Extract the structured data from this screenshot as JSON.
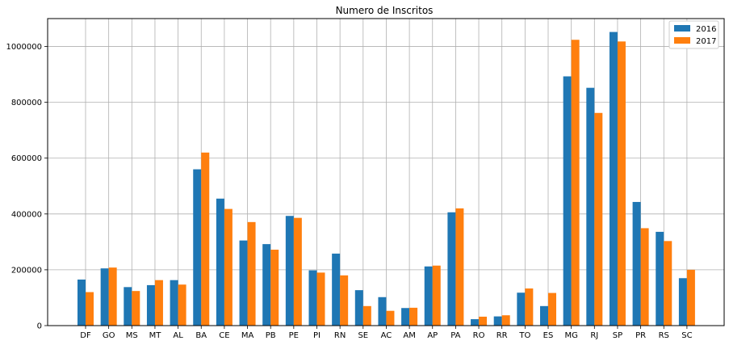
{
  "chart_data": {
    "type": "bar",
    "title": "Numero de Inscritos",
    "xlabel": "",
    "ylabel": "",
    "categories": [
      "DF",
      "GO",
      "MS",
      "MT",
      "AL",
      "BA",
      "CE",
      "MA",
      "PB",
      "PE",
      "PI",
      "RN",
      "SE",
      "AC",
      "AM",
      "AP",
      "PA",
      "RO",
      "RR",
      "TO",
      "ES",
      "MG",
      "RJ",
      "SP",
      "PR",
      "RS",
      "SC"
    ],
    "series": [
      {
        "name": "2016",
        "color": "#1f77b4",
        "values": [
          165000,
          205000,
          138000,
          145000,
          163000,
          560000,
          455000,
          305000,
          292000,
          393000,
          198000,
          258000,
          127000,
          102000,
          63000,
          212000,
          406000,
          23000,
          33000,
          118000,
          70000,
          893000,
          852000,
          1052000,
          443000,
          336000,
          170000
        ]
      },
      {
        "name": "2017",
        "color": "#ff7f0e",
        "values": [
          120000,
          208000,
          124000,
          163000,
          147000,
          620000,
          418000,
          371000,
          272000,
          386000,
          190000,
          180000,
          70000,
          53000,
          64000,
          215000,
          420000,
          32000,
          37000,
          133000,
          117000,
          1024000,
          762000,
          1018000,
          349000,
          303000,
          200000
        ]
      }
    ],
    "ylim": [
      0,
      1100000
    ],
    "yticks": [
      0,
      200000,
      400000,
      600000,
      800000,
      1000000
    ],
    "ytick_labels": [
      "0",
      "200000",
      "400000",
      "600000",
      "800000",
      "1000000"
    ],
    "grid": true,
    "legend": "top-right"
  }
}
